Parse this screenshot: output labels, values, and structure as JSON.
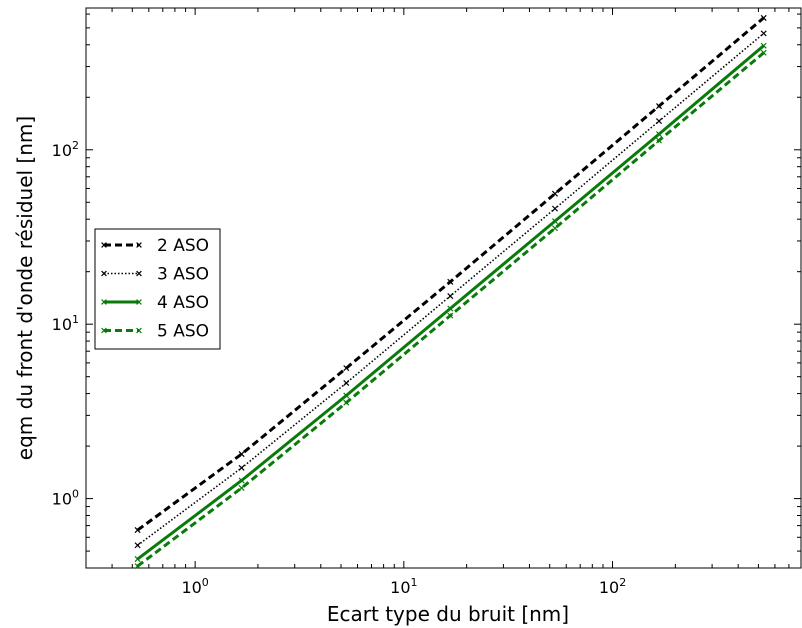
{
  "chart_data": {
    "type": "line",
    "title": "",
    "xlabel": "Ecart type du bruit [nm]",
    "ylabel": "eqm du front d'onde résiduel [nm]",
    "xscale": "log",
    "yscale": "log",
    "xlim": [
      0.3,
      800
    ],
    "ylim": [
      0.4,
      650
    ],
    "x_ticks": [
      {
        "value": 1,
        "base": "10",
        "exp": "0"
      },
      {
        "value": 10,
        "base": "10",
        "exp": "1"
      },
      {
        "value": 100,
        "base": "10",
        "exp": "2"
      }
    ],
    "y_ticks": [
      {
        "value": 1,
        "base": "10",
        "exp": "0"
      },
      {
        "value": 10,
        "base": "10",
        "exp": "1"
      },
      {
        "value": 100,
        "base": "10",
        "exp": "2"
      }
    ],
    "grid": false,
    "legend_position": "center-left",
    "x": [
      0.53,
      1.67,
      5.3,
      16.7,
      53,
      167,
      530
    ],
    "series": [
      {
        "name": "2 ASO",
        "color": "#000000",
        "style": "dashed",
        "values": [
          0.66,
          1.8,
          5.6,
          17.5,
          56,
          178,
          570
        ]
      },
      {
        "name": "3 ASO",
        "color": "#000000",
        "style": "dotted",
        "values": [
          0.54,
          1.5,
          4.6,
          14.5,
          46,
          146,
          465
        ]
      },
      {
        "name": "4 ASO",
        "color": "#0a7a0a",
        "style": "solid",
        "values": [
          0.45,
          1.27,
          3.9,
          12.3,
          39,
          123,
          395
        ]
      },
      {
        "name": "5 ASO",
        "color": "#0a7a0a",
        "style": "dashed",
        "values": [
          0.41,
          1.15,
          3.55,
          11.2,
          35.5,
          113,
          360
        ]
      }
    ]
  }
}
